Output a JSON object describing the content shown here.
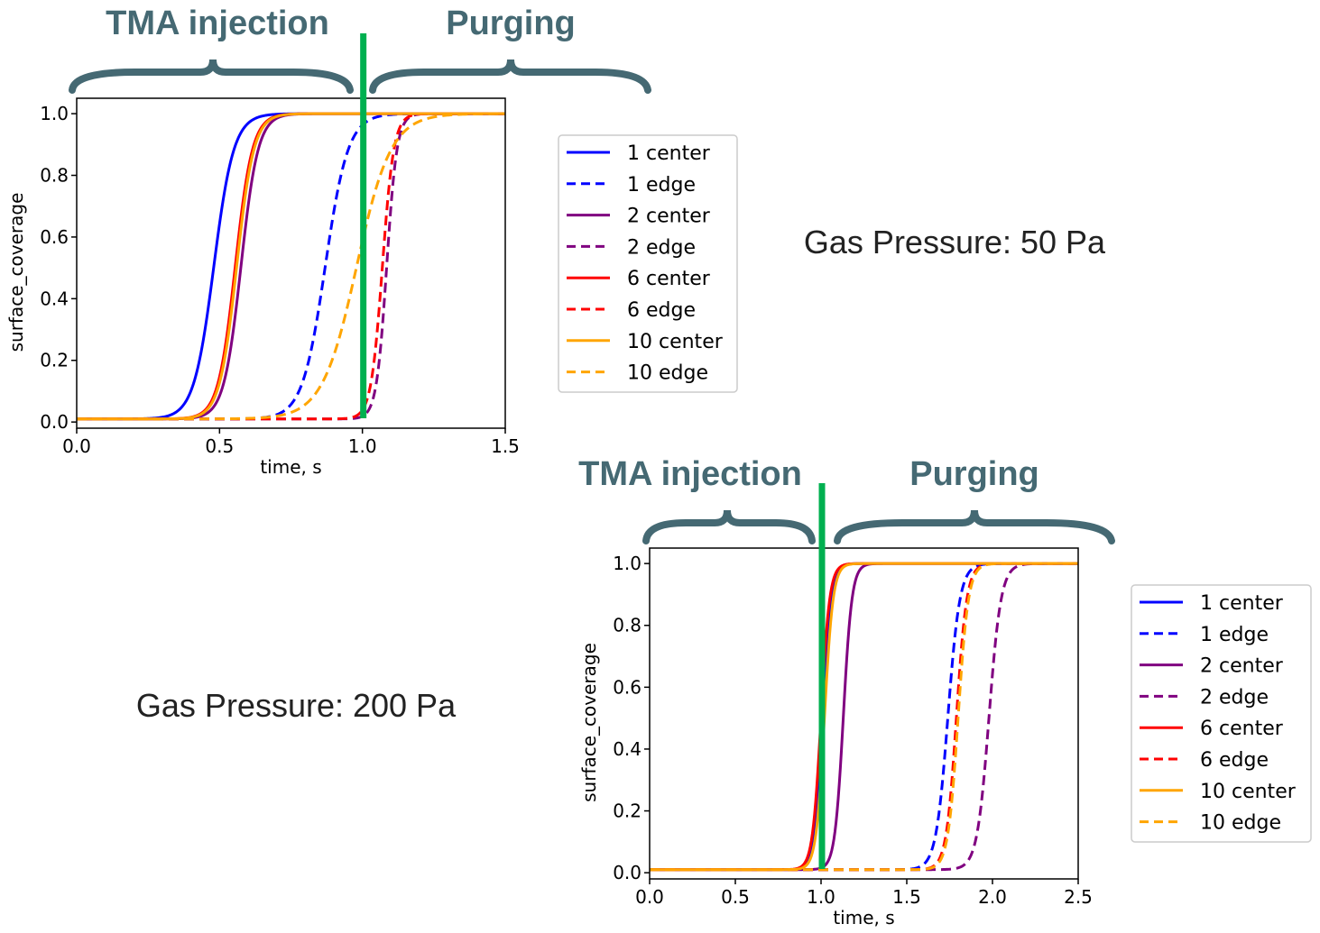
{
  "annotations": {
    "top_injection": "TMA injection",
    "top_purging": "Purging",
    "bottom_injection": "TMA injection",
    "bottom_purging": "Purging",
    "pressure_50": "Gas Pressure: 50 Pa",
    "pressure_200": "Gas Pressure: 200 Pa"
  },
  "colors": {
    "phase_text": "#456973",
    "brace": "#456973",
    "marker": "#00b050"
  },
  "chart_data": [
    {
      "type": "line",
      "title": "",
      "xlabel": "time, s",
      "ylabel": "surface_coverage",
      "xlim": [
        0,
        1.5
      ],
      "ylim": [
        -0.02,
        1.05
      ],
      "xticks": [
        "0.0",
        "0.5",
        "1.0",
        "1.5"
      ],
      "yticks": [
        "0.0",
        "0.2",
        "0.4",
        "0.6",
        "0.8",
        "1.0"
      ],
      "legend": "right-outside",
      "grid": false,
      "vline_x": 1.0,
      "baseline": 0.01,
      "series": [
        {
          "name": "1 center",
          "color": "#0000ff",
          "dash": false,
          "midpoint": 0.48,
          "rise_width": 0.035
        },
        {
          "name": "1 edge",
          "color": "#0000ff",
          "dash": true,
          "midpoint": 0.87,
          "rise_width": 0.04
        },
        {
          "name": "2 center",
          "color": "#800080",
          "dash": false,
          "midpoint": 0.575,
          "rise_width": 0.03
        },
        {
          "name": "2 edge",
          "color": "#800080",
          "dash": true,
          "midpoint": 1.085,
          "rise_width": 0.018
        },
        {
          "name": "6 center",
          "color": "#ff0000",
          "dash": false,
          "midpoint": 0.555,
          "rise_width": 0.03
        },
        {
          "name": "6 edge",
          "color": "#ff0000",
          "dash": true,
          "midpoint": 1.07,
          "rise_width": 0.02
        },
        {
          "name": "10 center",
          "color": "#ffa500",
          "dash": false,
          "midpoint": 0.56,
          "rise_width": 0.03
        },
        {
          "name": "10 edge",
          "color": "#ffa500",
          "dash": true,
          "midpoint": 0.98,
          "rise_width": 0.06
        }
      ]
    },
    {
      "type": "line",
      "title": "",
      "xlabel": "time, s",
      "ylabel": "surface_coverage",
      "xlim": [
        0,
        2.5
      ],
      "ylim": [
        -0.02,
        1.05
      ],
      "xticks": [
        "0.0",
        "0.5",
        "1.0",
        "1.5",
        "2.0",
        "2.5"
      ],
      "yticks": [
        "0.0",
        "0.2",
        "0.4",
        "0.6",
        "0.8",
        "1.0"
      ],
      "legend": "right-outside",
      "grid": false,
      "vline_x": 1.0,
      "baseline": 0.01,
      "series": [
        {
          "name": "1 center",
          "color": "#0000ff",
          "dash": false,
          "midpoint": 1.01,
          "rise_width": 0.025
        },
        {
          "name": "1 edge",
          "color": "#0000ff",
          "dash": true,
          "midpoint": 1.74,
          "rise_width": 0.035
        },
        {
          "name": "2 center",
          "color": "#800080",
          "dash": false,
          "midpoint": 1.13,
          "rise_width": 0.025
        },
        {
          "name": "2 edge",
          "color": "#800080",
          "dash": true,
          "midpoint": 1.98,
          "rise_width": 0.035
        },
        {
          "name": "6 center",
          "color": "#ff0000",
          "dash": false,
          "midpoint": 1.0,
          "rise_width": 0.025
        },
        {
          "name": "6 edge",
          "color": "#ff0000",
          "dash": true,
          "midpoint": 1.79,
          "rise_width": 0.03
        },
        {
          "name": "10 center",
          "color": "#ffa500",
          "dash": false,
          "midpoint": 1.02,
          "rise_width": 0.025
        },
        {
          "name": "10 edge",
          "color": "#ffa500",
          "dash": true,
          "midpoint": 1.8,
          "rise_width": 0.03
        }
      ]
    }
  ]
}
